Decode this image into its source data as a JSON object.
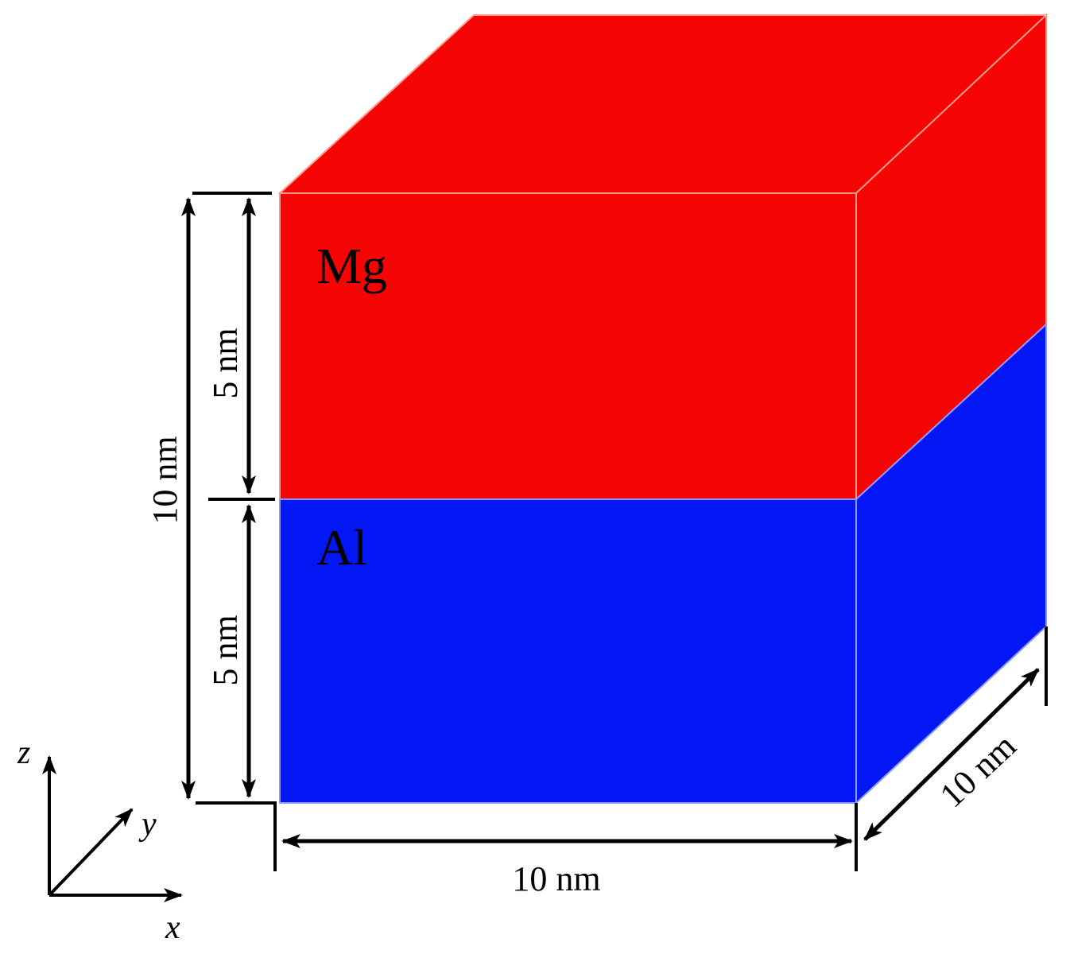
{
  "colors": {
    "mg": "#f40403",
    "al": "#0317f5",
    "line": "#000000",
    "background": "#ffffff"
  },
  "layers": {
    "top": {
      "label": "Mg"
    },
    "bottom": {
      "label": "Al"
    }
  },
  "dimensions": {
    "total_height": "10 nm",
    "top_height": "5 nm",
    "bottom_height": "5 nm",
    "width": "10 nm",
    "depth": "10 nm"
  },
  "axes": {
    "z": "z",
    "y": "y",
    "x": "x"
  }
}
